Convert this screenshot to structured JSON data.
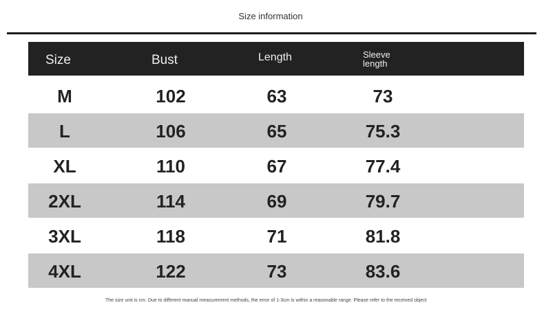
{
  "title": "Size information",
  "headers": [
    "Size",
    "Bust",
    "Length",
    "Sleeve length"
  ],
  "rows": [
    [
      "M",
      "102",
      "63",
      "73"
    ],
    [
      "L",
      "106",
      "65",
      "75.3"
    ],
    [
      "XL",
      "110",
      "67",
      "77.4"
    ],
    [
      "2XL",
      "114",
      "69",
      "79.7"
    ],
    [
      "3XL",
      "118",
      "71",
      "81.8"
    ],
    [
      "4XL",
      "122",
      "73",
      "83.6"
    ]
  ],
  "note": "The size unit is cm. Due to different manual measurement methods, the error of 1-3cm is within a reasonable range. Please refer to the received object",
  "colors": {
    "header_bg": "#222222",
    "stripe": "#c8c8c8"
  }
}
